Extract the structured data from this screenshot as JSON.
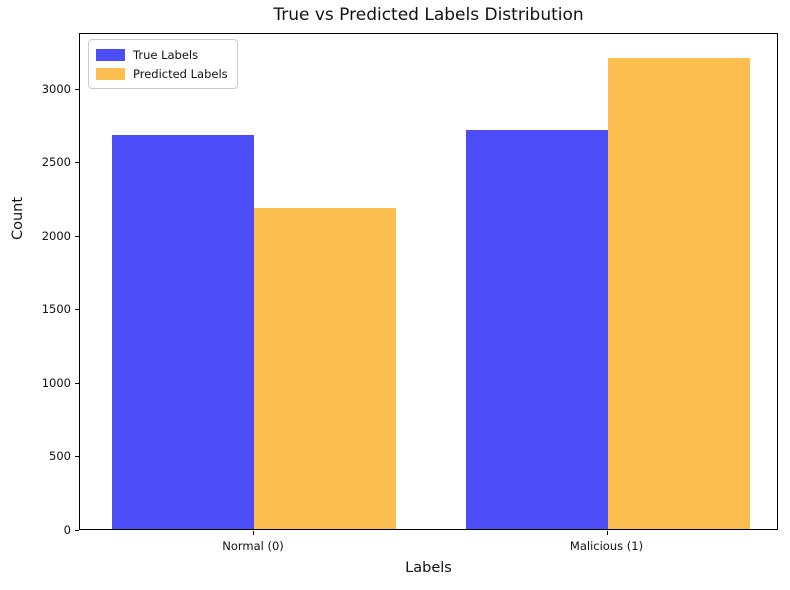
{
  "figure": {
    "background": "#ffffff"
  },
  "chart_data": {
    "type": "bar",
    "title": "True vs Predicted Labels Distribution",
    "xlabel": "Labels",
    "ylabel": "Count",
    "categories": [
      "Normal (0)",
      "Malicious (1)"
    ],
    "series": [
      {
        "name": "True Labels",
        "color": "#4c4df6",
        "values": [
          2680,
          2715
        ]
      },
      {
        "name": "Predicted Labels",
        "color": "#fcbe4e",
        "values": [
          2185,
          3205
        ]
      }
    ],
    "ylim": [
      0,
      3380
    ],
    "yticks": [
      0,
      500,
      1000,
      1500,
      2000,
      2500,
      3000
    ],
    "legend_position": "upper left",
    "grid": false,
    "axis_color": "#000000"
  }
}
